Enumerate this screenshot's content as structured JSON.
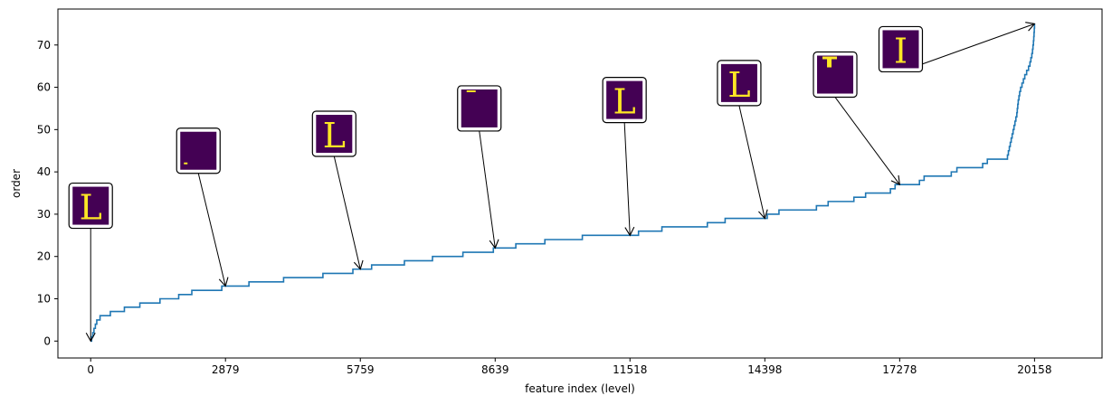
{
  "chart_data": {
    "type": "line",
    "title": "",
    "xlabel": "feature index (level)",
    "ylabel": "order",
    "xlim": [
      -700,
      21600
    ],
    "ylim": [
      -4,
      78.5
    ],
    "xticks": [
      0,
      2879,
      5759,
      8639,
      11518,
      14398,
      17278,
      20158
    ],
    "xtick_labels": [
      "0",
      "2879",
      "5759",
      "8639",
      "11518",
      "14398",
      "17278",
      "20158"
    ],
    "yticks": [
      0,
      10,
      20,
      30,
      40,
      50,
      60,
      70
    ],
    "ytick_labels": [
      "0",
      "10",
      "20",
      "30",
      "40",
      "50",
      "60",
      "70"
    ],
    "grid": false,
    "legend": "none",
    "series": [
      {
        "color": "#1f77b4",
        "steps": [
          [
            0,
            0
          ],
          [
            20,
            1
          ],
          [
            45,
            2
          ],
          [
            70,
            3
          ],
          [
            100,
            4
          ],
          [
            130,
            5
          ],
          [
            200,
            6
          ],
          [
            420,
            7
          ],
          [
            720,
            8
          ],
          [
            1050,
            9
          ],
          [
            1480,
            10
          ],
          [
            1880,
            11
          ],
          [
            2160,
            12
          ],
          [
            2800,
            13
          ],
          [
            3380,
            14
          ],
          [
            4120,
            15
          ],
          [
            4960,
            16
          ],
          [
            5600,
            17
          ],
          [
            6000,
            18
          ],
          [
            6700,
            19
          ],
          [
            7300,
            20
          ],
          [
            7950,
            21
          ],
          [
            8600,
            22
          ],
          [
            9080,
            23
          ],
          [
            9700,
            24
          ],
          [
            10500,
            25
          ],
          [
            11700,
            26
          ],
          [
            12200,
            27
          ],
          [
            13170,
            28
          ],
          [
            13550,
            29
          ],
          [
            14450,
            30
          ],
          [
            14700,
            31
          ],
          [
            15500,
            32
          ],
          [
            15750,
            33
          ],
          [
            16300,
            34
          ],
          [
            16550,
            35
          ],
          [
            17080,
            36
          ],
          [
            17180,
            37
          ],
          [
            17700,
            38
          ],
          [
            17800,
            39
          ],
          [
            18380,
            40
          ],
          [
            18500,
            41
          ],
          [
            19050,
            42
          ],
          [
            19150,
            43
          ],
          [
            19580,
            44
          ],
          [
            19600,
            45
          ],
          [
            19620,
            46
          ],
          [
            19640,
            47
          ],
          [
            19660,
            48
          ],
          [
            19680,
            49
          ],
          [
            19700,
            50
          ],
          [
            19720,
            51
          ],
          [
            19740,
            52
          ],
          [
            19760,
            53
          ],
          [
            19780,
            54
          ],
          [
            19790,
            55
          ],
          [
            19800,
            56
          ],
          [
            19810,
            57
          ],
          [
            19825,
            58
          ],
          [
            19840,
            59
          ],
          [
            19860,
            60
          ],
          [
            19890,
            61
          ],
          [
            19920,
            62
          ],
          [
            19950,
            63
          ],
          [
            19990,
            64
          ],
          [
            20030,
            65
          ],
          [
            20060,
            66
          ],
          [
            20080,
            67
          ],
          [
            20100,
            68
          ],
          [
            20115,
            69
          ],
          [
            20125,
            70
          ],
          [
            20135,
            71
          ],
          [
            20142,
            72
          ],
          [
            20148,
            73
          ],
          [
            20153,
            74
          ],
          [
            20158,
            75
          ]
        ]
      }
    ],
    "annotations": [
      {
        "x": 0,
        "y": 0,
        "glyph": "L",
        "thumb_x": 0,
        "thumb_y": 32
      },
      {
        "x": 2879,
        "y": 13,
        "glyph": "",
        "thumb_x": 2300,
        "thumb_y": 45
      },
      {
        "x": 5759,
        "y": 17,
        "glyph": "L",
        "thumb_x": 5200,
        "thumb_y": 49
      },
      {
        "x": 8639,
        "y": 22,
        "glyph": "",
        "thumb_x": 8300,
        "thumb_y": 55
      },
      {
        "x": 11518,
        "y": 25,
        "glyph": "L",
        "thumb_x": 11400,
        "thumb_y": 57
      },
      {
        "x": 14398,
        "y": 29,
        "glyph": "L",
        "thumb_x": 13850,
        "thumb_y": 61
      },
      {
        "x": 17278,
        "y": 37,
        "glyph": "",
        "thumb_x": 15900,
        "thumb_y": 63
      },
      {
        "x": 20158,
        "y": 75,
        "glyph": "I",
        "thumb_x": 17300,
        "thumb_y": 69
      }
    ]
  }
}
